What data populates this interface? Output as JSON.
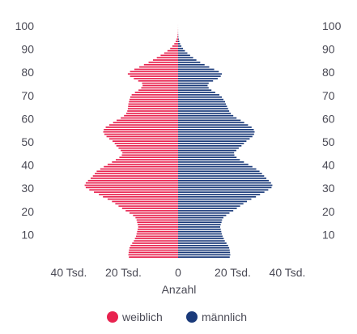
{
  "chart_data": {
    "type": "bar",
    "orientation": "horizontal",
    "title": "",
    "xlabel": "Anzahl",
    "ylabel": "",
    "xlim": [
      -40000,
      40000
    ],
    "ylim": [
      0,
      100
    ],
    "x_tick_labels": [
      "40 Tsd.",
      "20 Tsd.",
      "0",
      "20 Tsd.",
      "40 Tsd."
    ],
    "y_tick_labels": [
      "100",
      "90",
      "80",
      "70",
      "60",
      "50",
      "40",
      "30",
      "20",
      "10"
    ],
    "grid": false,
    "legend_position": "bottom",
    "ages": [
      0,
      1,
      2,
      3,
      4,
      5,
      6,
      7,
      8,
      9,
      10,
      11,
      12,
      13,
      14,
      15,
      16,
      17,
      18,
      19,
      20,
      21,
      22,
      23,
      24,
      25,
      26,
      27,
      28,
      29,
      30,
      31,
      32,
      33,
      34,
      35,
      36,
      37,
      38,
      39,
      40,
      41,
      42,
      43,
      44,
      45,
      46,
      47,
      48,
      49,
      50,
      51,
      52,
      53,
      54,
      55,
      56,
      57,
      58,
      59,
      60,
      61,
      62,
      63,
      64,
      65,
      66,
      67,
      68,
      69,
      70,
      71,
      72,
      73,
      74,
      75,
      76,
      77,
      78,
      79,
      80,
      81,
      82,
      83,
      84,
      85,
      86,
      87,
      88,
      89,
      90,
      91,
      92,
      93,
      94,
      95,
      96,
      97,
      98,
      99,
      100
    ],
    "series": [
      {
        "name": "weiblich",
        "color": "#e8234f",
        "values": [
          18000,
          18200,
          18100,
          18000,
          17800,
          17400,
          16800,
          16200,
          15800,
          15400,
          15200,
          15000,
          14800,
          14600,
          14800,
          15000,
          15200,
          15600,
          16500,
          17800,
          19200,
          20500,
          21800,
          23000,
          24200,
          25800,
          27500,
          29000,
          30800,
          32500,
          33800,
          34200,
          33800,
          33000,
          32000,
          31200,
          30500,
          29800,
          28500,
          27200,
          25800,
          24200,
          22800,
          21500,
          20600,
          20400,
          21000,
          21800,
          22600,
          23200,
          24000,
          25200,
          26200,
          27000,
          27400,
          27200,
          26500,
          25200,
          23800,
          22500,
          21000,
          19800,
          19000,
          18600,
          18400,
          18300,
          18200,
          18000,
          17800,
          17500,
          17000,
          15800,
          14500,
          13500,
          13000,
          13200,
          14600,
          16200,
          17600,
          18400,
          17600,
          16000,
          14200,
          12500,
          10800,
          9200,
          7800,
          6400,
          5100,
          3900,
          2900,
          2100,
          1400,
          900,
          550,
          300,
          160,
          80,
          40,
          18,
          8
        ]
      },
      {
        "name": "männlich",
        "color": "#1a3a7a",
        "values": [
          18900,
          19100,
          19000,
          18900,
          18700,
          18300,
          17700,
          17100,
          16700,
          16300,
          16000,
          15800,
          15600,
          15400,
          15600,
          15900,
          16100,
          16600,
          17600,
          18800,
          20200,
          21500,
          22700,
          23900,
          25200,
          26800,
          28500,
          30000,
          31600,
          33000,
          34200,
          34500,
          34000,
          33200,
          32300,
          31500,
          30700,
          29800,
          28600,
          27200,
          25700,
          24100,
          22600,
          21400,
          20600,
          20500,
          21300,
          22200,
          23200,
          24100,
          25000,
          26200,
          27200,
          27800,
          28000,
          27700,
          26900,
          25600,
          24200,
          22900,
          21400,
          20200,
          19300,
          18700,
          18300,
          17900,
          17500,
          17200,
          16600,
          16000,
          15100,
          13600,
          12200,
          11200,
          10800,
          11200,
          12800,
          14500,
          15600,
          16000,
          14900,
          13200,
          11400,
          9700,
          8100,
          6700,
          5500,
          4400,
          3400,
          2500,
          1800,
          1200,
          750,
          450,
          250,
          120,
          55,
          25,
          12,
          5,
          2
        ]
      }
    ]
  }
}
